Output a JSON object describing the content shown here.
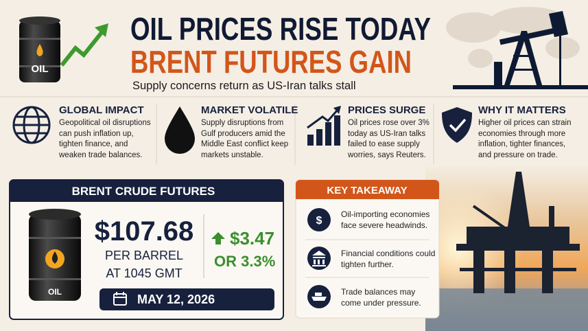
{
  "header": {
    "barrel_label": "OIL",
    "title": "OIL PRICES RISE TODAY",
    "title_line2": "BRENT FUTURES GAIN",
    "subtitle": "Supply concerns return as US-Iran talks stall"
  },
  "cards": [
    {
      "title": "GLOBAL IMPACT",
      "body": "Geopolitical oil disruptions can push inflation up, tighten finance, and weaken trade balances."
    },
    {
      "title": "MARKET VOLATILE",
      "body": "Supply disruptions from Gulf producers amid the Middle East conflict keep markets unstable."
    },
    {
      "title": "PRICES SURGE",
      "body": "Oil prices rose over 3% today as US-Iran talks failed to ease supply worries, says Reuters."
    },
    {
      "title": "WHY IT MATTERS",
      "body": "Higher oil prices can strain economies through more inflation, tighter finances, and pressure on trade."
    }
  ],
  "brent": {
    "heading": "BRENT CRUDE FUTURES",
    "barrel_label": "OIL",
    "price": "$107.68",
    "unit": "PER BARREL",
    "time": "AT 1045 GMT",
    "change": "$3.47",
    "change_pct": "OR 3.3%",
    "date": "MAY 12, 2026"
  },
  "takeaway": {
    "title": "KEY TAKEAWAY",
    "items": [
      "Oil-importing economies face severe headwinds.",
      "Financial conditions could tighten further.",
      "Trade balances may come under pressure."
    ]
  }
}
